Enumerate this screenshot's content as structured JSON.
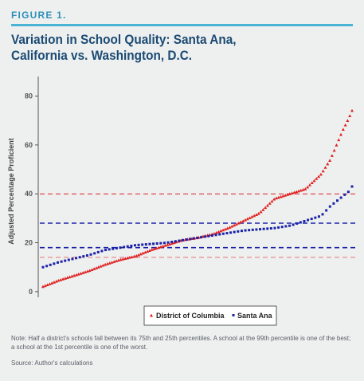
{
  "figure_label": "FIGURE 1.",
  "title_line1": "Variation in School Quality: Santa Ana,",
  "title_line2": "California vs. Washington, D.C.",
  "note": "Note: Half a district's schools fall between its 75th and 25th percentiles. A school at the 99th percentile is one of the best; a school at the 1st percentile is one of the worst.",
  "source": "Source: Author's calculations",
  "colors": {
    "accent": "#4ab3d6",
    "title": "#1b4a73",
    "dc_red": "#e02020",
    "santa_ana_blue": "#1a23a8",
    "background": "#eef0f0"
  },
  "chart_data": {
    "type": "scatter",
    "ylabel": "Adjusted Percentage Proficient",
    "xlabel": "",
    "yticks": [
      0,
      20,
      40,
      60,
      80
    ],
    "ylim": [
      -2,
      88
    ],
    "xlim": [
      0,
      100
    ],
    "grid": false,
    "legend_position": "bottom-center",
    "series": [
      {
        "name": "District of Columbia",
        "marker": "triangle",
        "color": "#e02020",
        "x": [
          0,
          5,
          10,
          15,
          20,
          25,
          30,
          35,
          40,
          45,
          50,
          55,
          60,
          65,
          70,
          75,
          80,
          85,
          90,
          93,
          95,
          97,
          99,
          100
        ],
        "y": [
          2,
          4.5,
          6.5,
          8.5,
          11,
          13,
          14.5,
          17,
          19,
          21,
          22,
          23.5,
          26,
          29,
          32,
          38,
          40,
          42,
          48,
          54,
          60,
          66,
          71,
          74
        ]
      },
      {
        "name": "Santa Ana",
        "marker": "square",
        "color": "#1a23a8",
        "x": [
          0,
          5,
          10,
          15,
          20,
          25,
          30,
          35,
          40,
          45,
          50,
          55,
          60,
          65,
          70,
          75,
          80,
          85,
          90,
          93,
          95,
          97,
          99,
          100
        ],
        "y": [
          10,
          12,
          13.5,
          15,
          17,
          18,
          19,
          19.5,
          20,
          21,
          22,
          23,
          24,
          25,
          25.5,
          26,
          27,
          29,
          31,
          35,
          37,
          39,
          41,
          43
        ]
      }
    ],
    "reference_lines": [
      {
        "series": "District of Columbia",
        "label": "75th percentile",
        "y": 40,
        "color": "#e02020",
        "style": "dashed"
      },
      {
        "series": "District of Columbia",
        "label": "25th percentile",
        "y": 14,
        "color": "#e02020",
        "style": "dashed"
      },
      {
        "series": "Santa Ana",
        "label": "75th percentile",
        "y": 28,
        "color": "#1a23a8",
        "style": "dashed"
      },
      {
        "series": "Santa Ana",
        "label": "25th percentile",
        "y": 18,
        "color": "#1a23a8",
        "style": "dashed"
      }
    ]
  }
}
